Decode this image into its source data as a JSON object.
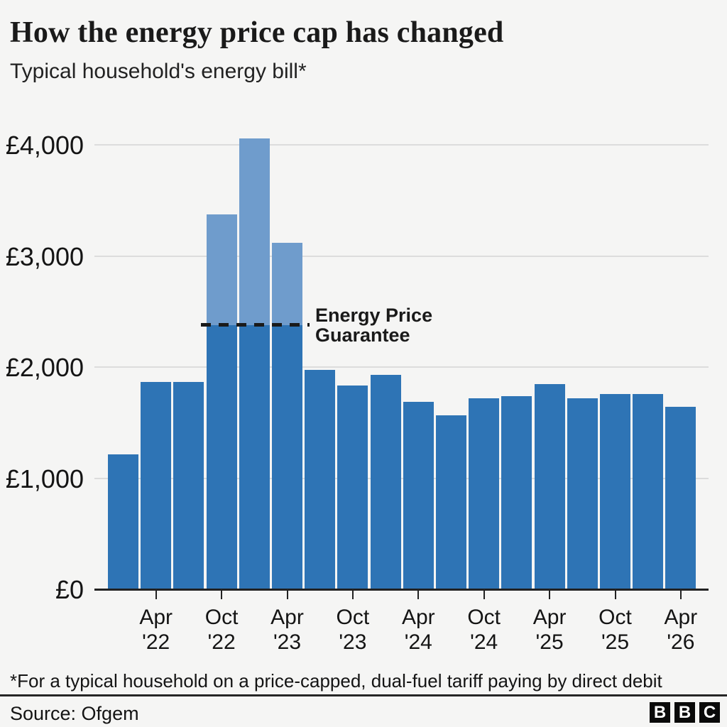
{
  "chart_data": {
    "type": "bar",
    "title": "How the energy price cap has changed",
    "subtitle": "Typical household's energy bill*",
    "currency": "£",
    "ylim": [
      0,
      4300
    ],
    "grid": "horizontal",
    "y_ticks": [
      {
        "value": 0,
        "label": "£0"
      },
      {
        "value": 1000,
        "label": "£1,000"
      },
      {
        "value": 2000,
        "label": "£2,000"
      },
      {
        "value": 3000,
        "label": "£3,000"
      },
      {
        "value": 4000,
        "label": "£4,000"
      }
    ],
    "categories": [
      "Jan '22",
      "Apr '22",
      "Jul '22",
      "Oct '22",
      "Jan '23",
      "Apr '23",
      "Jul '23",
      "Oct '23",
      "Jan '24",
      "Apr '24",
      "Jul '24",
      "Oct '24",
      "Jan '25",
      "Apr '25",
      "Jul '25",
      "Oct '25",
      "Jan '26",
      "Apr '26"
    ],
    "values": [
      1216,
      1866,
      1866,
      3372,
      4059,
      3116,
      1976,
      1834,
      1928,
      1690,
      1568,
      1717,
      1738,
      1849,
      1720,
      1755,
      1758,
      1644
    ],
    "x_tick_labels": [
      {
        "index": 1,
        "line1": "Apr",
        "line2": "'22"
      },
      {
        "index": 3,
        "line1": "Oct",
        "line2": "'22"
      },
      {
        "index": 5,
        "line1": "Apr",
        "line2": "'23"
      },
      {
        "index": 7,
        "line1": "Oct",
        "line2": "'23"
      },
      {
        "index": 9,
        "line1": "Apr",
        "line2": "'24"
      },
      {
        "index": 11,
        "line1": "Oct",
        "line2": "'24"
      },
      {
        "index": 13,
        "line1": "Apr",
        "line2": "'25"
      },
      {
        "index": 15,
        "line1": "Oct",
        "line2": "'25"
      },
      {
        "index": 17,
        "line1": "Apr",
        "line2": "'26"
      }
    ],
    "annotation": {
      "label_line1": "Energy Price",
      "label_line2": "Guarantee",
      "value": 2380,
      "applies_to_indices": [
        3,
        4,
        5
      ],
      "style": "dashed-line"
    },
    "colors": {
      "bar": "#2e74b5",
      "bar_above_guarantee": "#6f9ccc",
      "background": "#f5f5f4",
      "gridline": "#dcdcdc",
      "axis": "#222222",
      "dash": "#1a1a1a"
    }
  },
  "footer": {
    "footnote": "*For a typical household on a price-capped, dual-fuel tariff paying by direct debit",
    "source": "Source: Ofgem",
    "logo_letters": [
      "B",
      "B",
      "C"
    ]
  }
}
